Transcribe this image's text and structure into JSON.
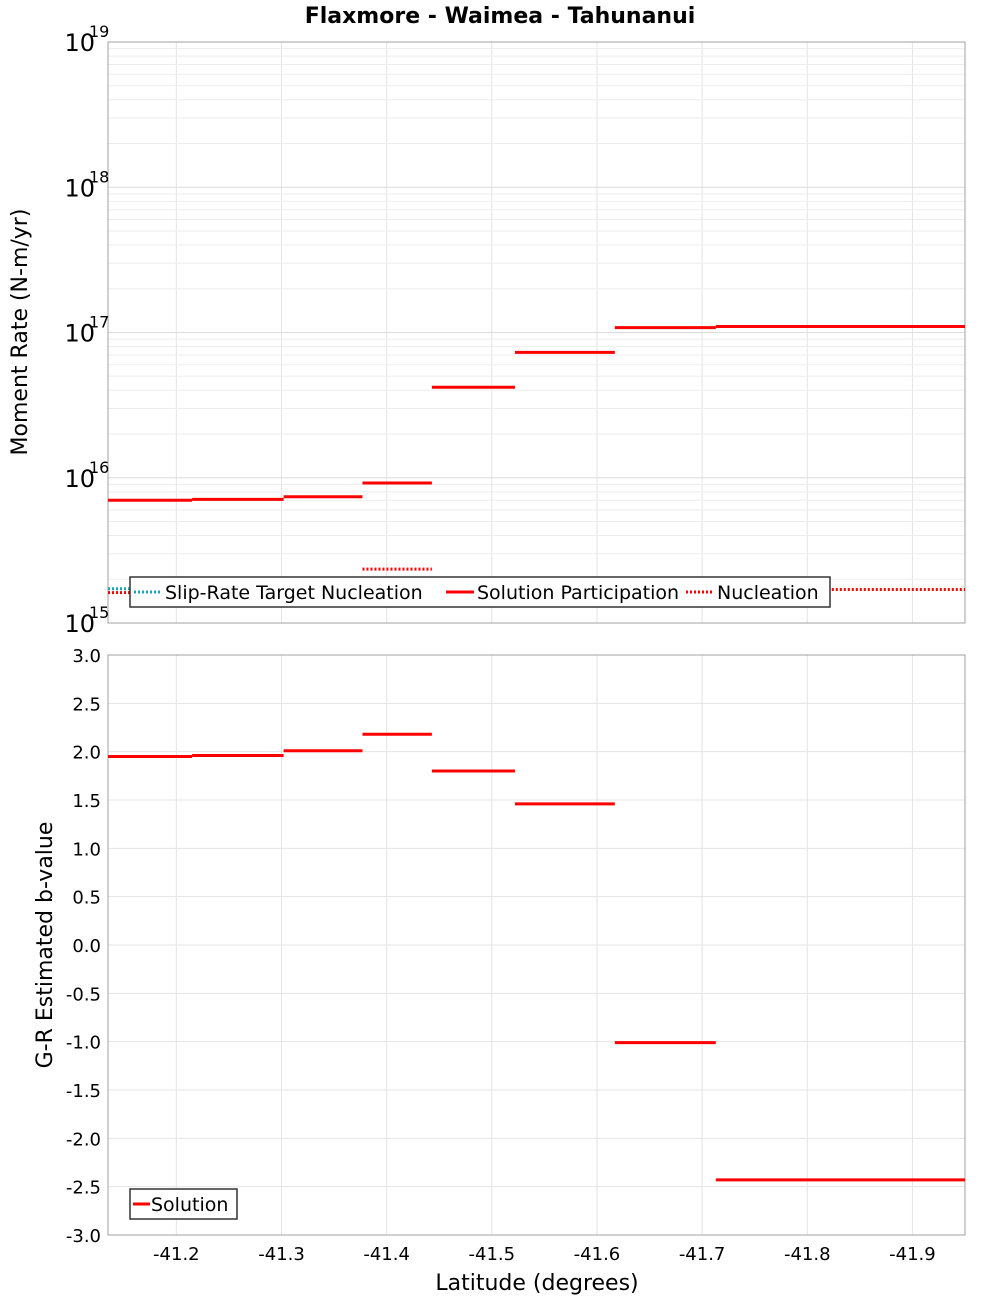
{
  "title": "Flaxmore - Waimea - Tahunanui",
  "colors": {
    "solution": "#ff0000",
    "nucleation": "#ff0000",
    "target": "#1aa6b7",
    "grid": "#e4e4e4",
    "frame": "#a0a0a0"
  },
  "chart_data": [
    {
      "type": "line",
      "name": "moment-rate",
      "ylabel": "Moment Rate (N-m/yr)",
      "yscale": "log",
      "ylim": [
        1000000000000000.0,
        1e+19
      ],
      "xlim": [
        -41.135,
        -41.95
      ],
      "y_tick_labels": [
        {
          "value": 1000000000000000.0,
          "base": "10",
          "exp": "15"
        },
        {
          "value": 1e+16,
          "base": "10",
          "exp": "16"
        },
        {
          "value": 1e+17,
          "base": "10",
          "exp": "17"
        },
        {
          "value": 1e+18,
          "base": "10",
          "exp": "18"
        },
        {
          "value": 1e+19,
          "base": "10",
          "exp": "19"
        }
      ],
      "series": [
        {
          "name": "Solution Participation",
          "style": "solid",
          "segments": [
            {
              "x0": -41.135,
              "x1": -41.215,
              "y": 7000000000000000.0
            },
            {
              "x0": -41.215,
              "x1": -41.302,
              "y": 7100000000000000.0
            },
            {
              "x0": -41.302,
              "x1": -41.377,
              "y": 7400000000000000.0
            },
            {
              "x0": -41.377,
              "x1": -41.443,
              "y": 9200000000000000.0
            },
            {
              "x0": -41.443,
              "x1": -41.522,
              "y": 4.2e+16
            },
            {
              "x0": -41.522,
              "x1": -41.617,
              "y": 7.3e+16
            },
            {
              "x0": -41.617,
              "x1": -41.713,
              "y": 1.08e+17
            },
            {
              "x0": -41.713,
              "x1": -41.872,
              "y": 1.1e+17
            },
            {
              "x0": -41.872,
              "x1": -41.95,
              "y": 1.1e+17
            }
          ]
        },
        {
          "name": "Nucleation",
          "style": "dotted",
          "segments": [
            {
              "x0": -41.135,
              "x1": -41.215,
              "y": 1620000000000000.0
            },
            {
              "x0": -41.377,
              "x1": -41.443,
              "y": 2350000000000000.0
            },
            {
              "x0": -41.713,
              "x1": -41.95,
              "y": 1700000000000000.0
            }
          ]
        },
        {
          "name": "Slip-Rate Target Nucleation",
          "style": "dotted",
          "segments": [
            {
              "x0": -41.135,
              "x1": -41.215,
              "y": 1720000000000000.0
            }
          ]
        }
      ],
      "legend": {
        "position": "bottom-left",
        "entries": [
          "Slip-Rate Target Nucleation",
          "Solution Participation",
          "Nucleation"
        ]
      }
    },
    {
      "type": "line",
      "name": "b-value",
      "ylabel": "G-R Estimated b-value",
      "xlabel": "Latitude (degrees)",
      "ylim": [
        -3.0,
        3.0
      ],
      "xlim": [
        -41.135,
        -41.95
      ],
      "y_ticks": [
        "3.0",
        "2.5",
        "2.0",
        "1.5",
        "1.0",
        "0.5",
        "0.0",
        "-0.5",
        "-1.0",
        "-1.5",
        "-2.0",
        "-2.5",
        "-3.0"
      ],
      "x_ticks": [
        "-41.2",
        "-41.3",
        "-41.4",
        "-41.5",
        "-41.6",
        "-41.7",
        "-41.8",
        "-41.9"
      ],
      "series": [
        {
          "name": "Solution",
          "style": "solid",
          "segments": [
            {
              "x0": -41.135,
              "x1": -41.215,
              "y": 1.95
            },
            {
              "x0": -41.215,
              "x1": -41.302,
              "y": 1.96
            },
            {
              "x0": -41.302,
              "x1": -41.377,
              "y": 2.01
            },
            {
              "x0": -41.377,
              "x1": -41.443,
              "y": 2.18
            },
            {
              "x0": -41.443,
              "x1": -41.522,
              "y": 1.8
            },
            {
              "x0": -41.522,
              "x1": -41.617,
              "y": 1.46
            },
            {
              "x0": -41.617,
              "x1": -41.713,
              "y": -1.01
            },
            {
              "x0": -41.713,
              "x1": -41.872,
              "y": -2.43
            },
            {
              "x0": -41.872,
              "x1": -41.95,
              "y": -2.43
            }
          ]
        }
      ],
      "legend": {
        "position": "bottom-left",
        "entries": [
          "Solution"
        ]
      }
    }
  ]
}
